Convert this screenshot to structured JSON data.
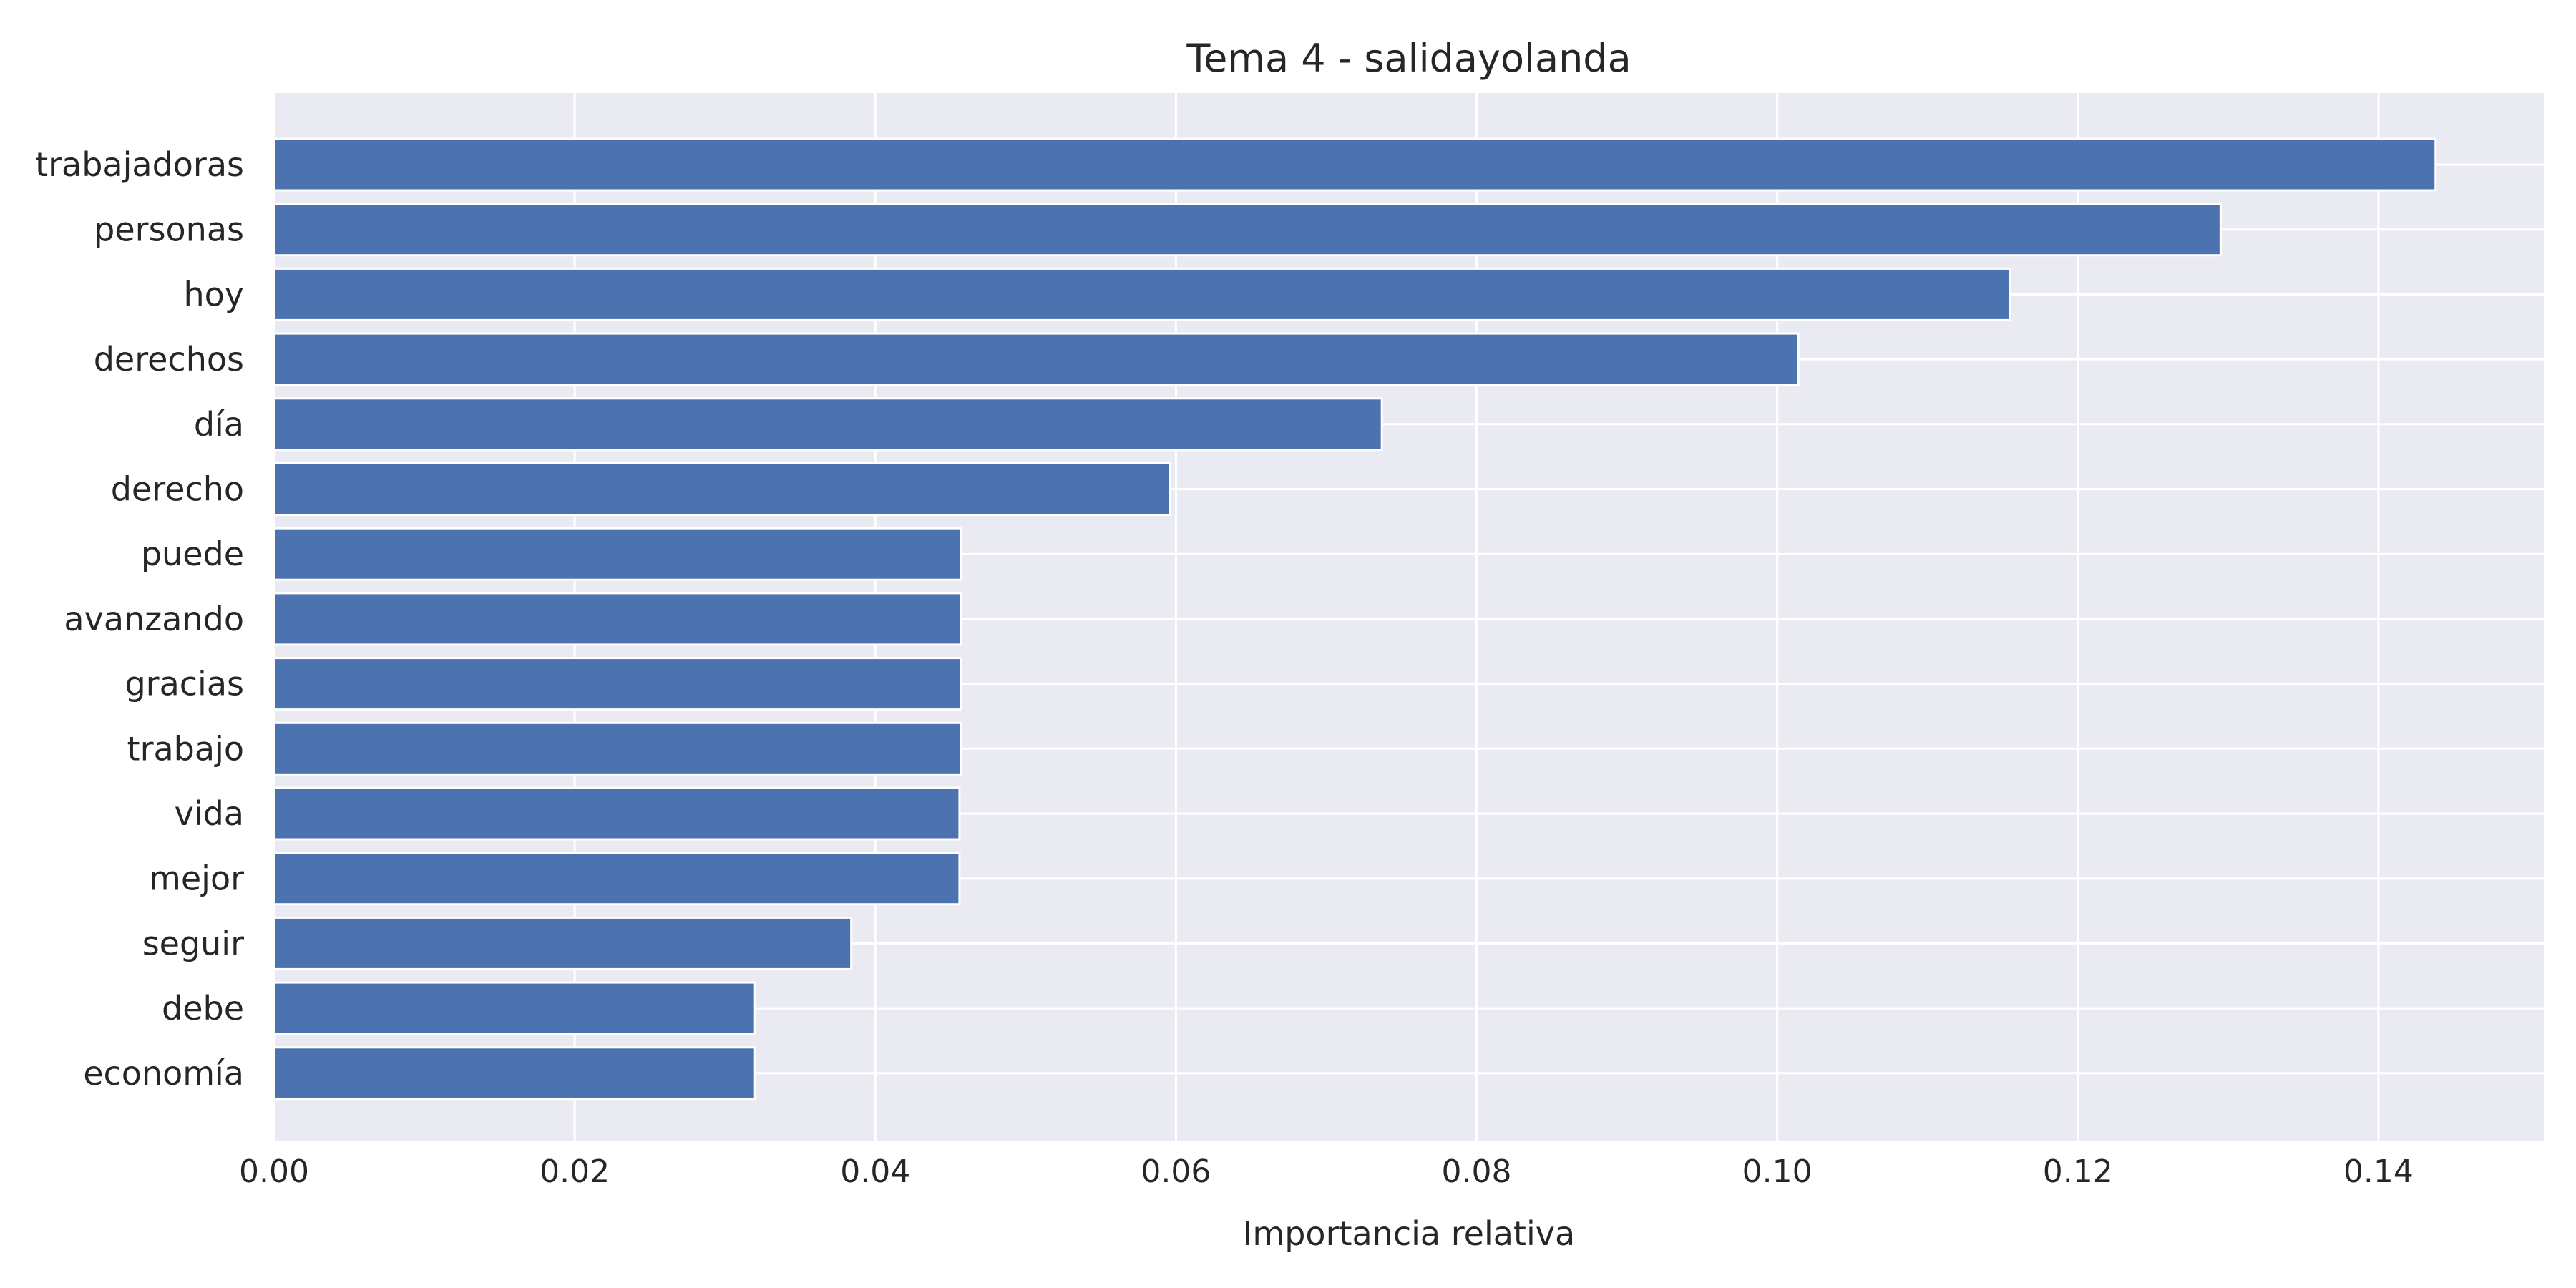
{
  "chart_data": {
    "type": "bar",
    "orientation": "horizontal",
    "title": "Tema 4 - salidayolanda",
    "xlabel": "Importancia relativa",
    "ylabel": "",
    "categories": [
      "trabajadoras",
      "personas",
      "hoy",
      "derechos",
      "día",
      "derecho",
      "puede",
      "avanzando",
      "gracias",
      "trabajo",
      "vida",
      "mejor",
      "seguir",
      "debe",
      "economía"
    ],
    "values": [
      0.1438,
      0.1295,
      0.1155,
      0.1014,
      0.0737,
      0.0596,
      0.0457,
      0.0457,
      0.0457,
      0.0457,
      0.0456,
      0.0456,
      0.0384,
      0.032,
      0.032
    ],
    "xlim": [
      0,
      0.151
    ],
    "xticks": [
      0.0,
      0.02,
      0.04,
      0.06,
      0.08,
      0.1,
      0.12,
      0.14
    ],
    "xtick_labels": [
      "0.00",
      "0.02",
      "0.04",
      "0.06",
      "0.08",
      "0.10",
      "0.12",
      "0.14"
    ],
    "grid": true,
    "colors": {
      "bar": "#4c72b0",
      "plot_background": "#eaeaf2",
      "grid": "#ffffff",
      "text": "#262626"
    }
  }
}
